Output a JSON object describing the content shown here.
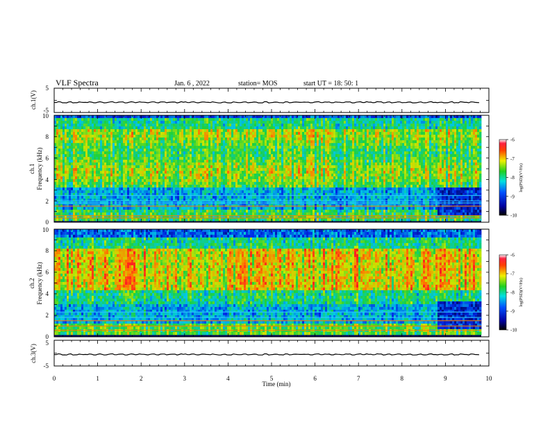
{
  "header": {
    "title": "VLF Spectra",
    "date": "Jan. 6 , 2022",
    "station": "station= MOS",
    "start": "start UT = 18: 50: 1"
  },
  "chart_data": [
    {
      "type": "line",
      "panel": "ch1-waveform",
      "ylabel": "ch.1(V)",
      "ylim": [
        -5,
        5
      ],
      "yticks": [
        5,
        -5
      ],
      "series": [
        {
          "x": [
            0,
            9.8
          ],
          "values": [
            -0.8,
            -0.8
          ]
        }
      ]
    },
    {
      "type": "heatmap",
      "panel": "ch1-spectrogram",
      "ylabel": "ch.1\nFrequency (kHz)",
      "ylim": [
        0,
        10
      ],
      "yticks": [
        0,
        2,
        4,
        6,
        8,
        10
      ],
      "xlim": [
        0,
        10
      ],
      "colorbar": {
        "label": "log(PSD)(V²/Hz)",
        "range": [
          -10,
          -6
        ],
        "ticks": [
          -6,
          -7,
          -8,
          -9,
          -10
        ]
      }
    },
    {
      "type": "heatmap",
      "panel": "ch2-spectrogram",
      "ylabel": "ch.2\nFrequency (kHz)",
      "ylim": [
        0,
        10
      ],
      "yticks": [
        0,
        2,
        4,
        6,
        8,
        10
      ],
      "xlim": [
        0,
        10
      ],
      "colorbar": {
        "label": "log(PSD)(V²/Hz)",
        "range": [
          -10,
          -6
        ],
        "ticks": [
          -6,
          -7,
          -8,
          -9,
          -10
        ]
      }
    },
    {
      "type": "line",
      "panel": "ch3-waveform",
      "ylabel": "ch.3(V)",
      "ylim": [
        -5,
        5
      ],
      "yticks": [
        5,
        0,
        -5
      ],
      "series": [
        {
          "x": [
            0,
            9.8
          ],
          "values": [
            -0.5,
            -0.5
          ]
        }
      ]
    }
  ],
  "xaxis": {
    "label": "Time (min)",
    "ticks": [
      0,
      1,
      2,
      3,
      4,
      5,
      6,
      7,
      8,
      9,
      10
    ]
  }
}
